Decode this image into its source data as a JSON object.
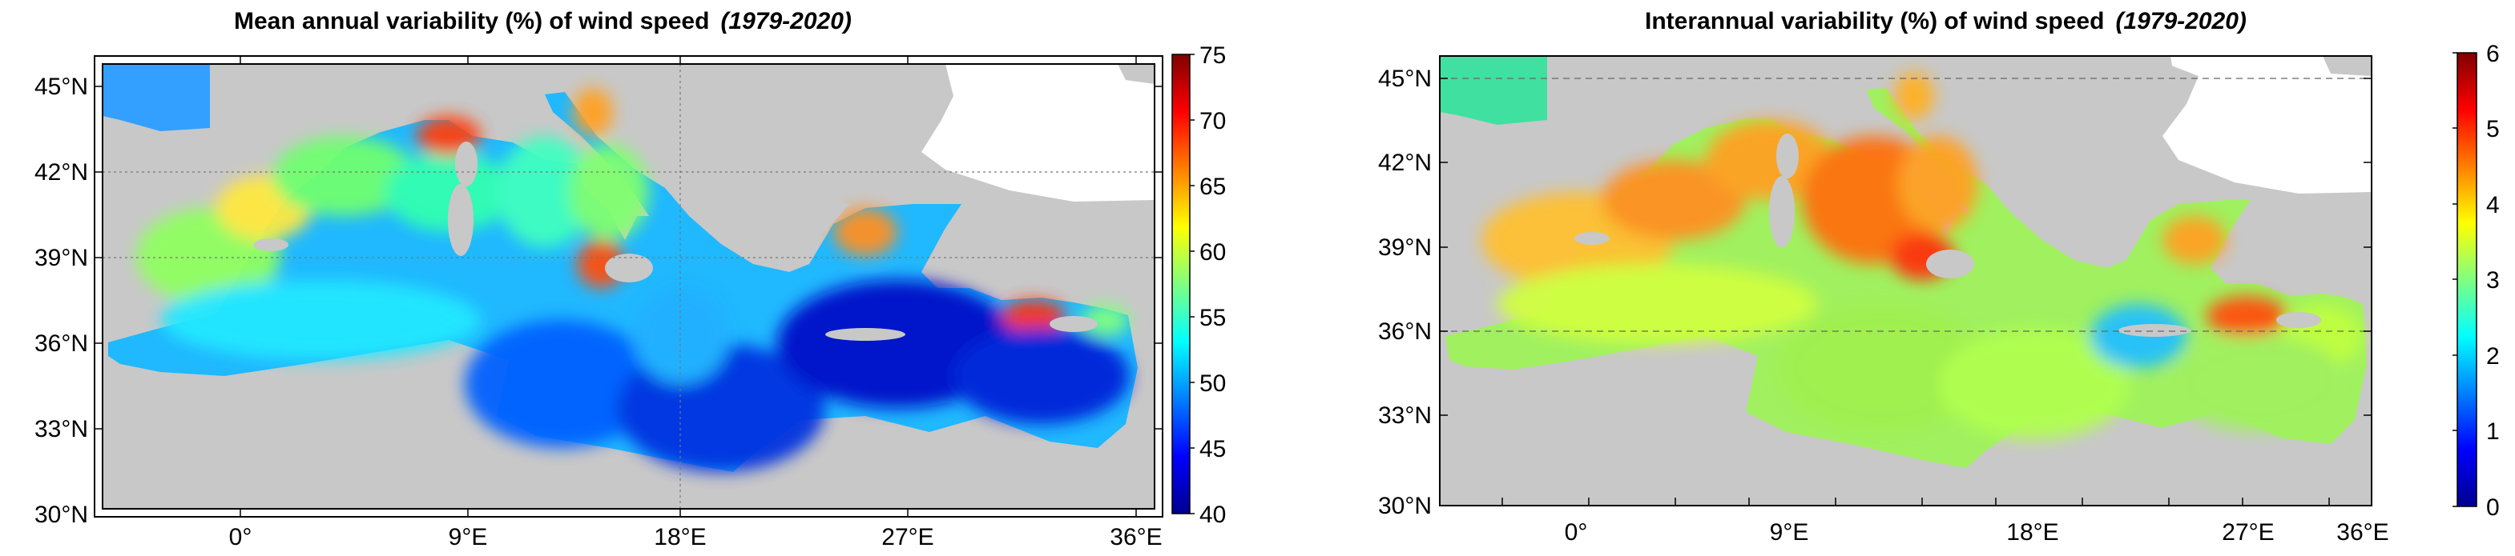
{
  "left_panel": {
    "title": "Mean annual variability (%) of wind speed",
    "title_period": "(1979-2020)",
    "lat_labels": [
      "45°N",
      "42°N",
      "39°N",
      "36°N",
      "33°N",
      "30°N"
    ],
    "lon_labels": [
      "0°",
      "9°E",
      "18°E",
      "27°E",
      "36°E"
    ],
    "colorbar": {
      "min": 40,
      "max": 75,
      "tick_labels": [
        "75",
        "70",
        "65",
        "60",
        "55",
        "50",
        "45",
        "40"
      ]
    },
    "graticule": "dotted at 42°N, 39°N and 18°E"
  },
  "right_panel": {
    "title": "Interannual variability (%) of wind speed",
    "title_period": "(1979-2020)",
    "lat_labels": [
      "45°N",
      "42°N",
      "39°N",
      "36°N",
      "33°N",
      "30°N"
    ],
    "lon_labels": [
      "0°",
      "9°E",
      "18°E",
      "27°E",
      "36°E"
    ],
    "colorbar": {
      "min": 0,
      "max": 6,
      "tick_labels": [
        "6",
        "5",
        "4",
        "3",
        "2",
        "1",
        "0"
      ]
    },
    "graticule": "dashed at 45°N and 36°N"
  },
  "colors": {
    "land": "#c8c8c8",
    "outside_domain": "#ffffff",
    "colormap": [
      "#00008f",
      "#0000ff",
      "#0080ff",
      "#00ffff",
      "#80ff80",
      "#ffff00",
      "#ff8000",
      "#ff0000",
      "#800000"
    ]
  }
}
